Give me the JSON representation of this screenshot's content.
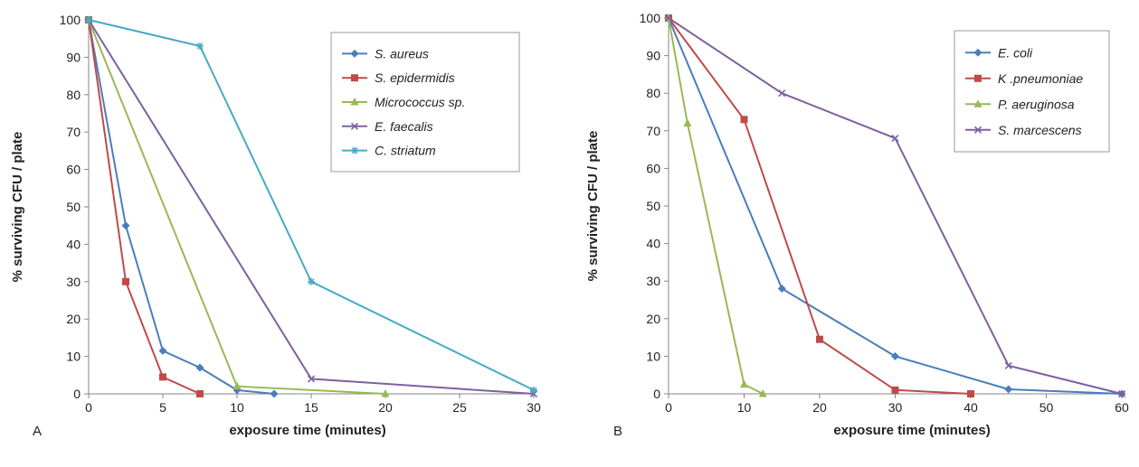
{
  "chart_data": [
    {
      "type": "line",
      "panel_label": "A",
      "xlabel": "exposure time (minutes)",
      "ylabel": "% surviving CFU / plate",
      "xlim": [
        0,
        30
      ],
      "ylim": [
        0,
        100
      ],
      "xticks": [
        0,
        5,
        10,
        15,
        20,
        25,
        30
      ],
      "yticks": [
        0,
        10,
        20,
        30,
        40,
        50,
        60,
        70,
        80,
        90,
        100
      ],
      "legend_position": "top-right",
      "series": [
        {
          "name": "S. aureus",
          "color": "#4a7ebb",
          "marker": "diamond",
          "x": [
            0,
            2.5,
            5,
            7.5,
            10,
            12.5
          ],
          "y": [
            100,
            45,
            11.5,
            7,
            1,
            0
          ]
        },
        {
          "name": "S. epidermidis",
          "color": "#be4b48",
          "marker": "square",
          "x": [
            0,
            2.5,
            5,
            7.5
          ],
          "y": [
            100,
            30,
            4.5,
            0
          ]
        },
        {
          "name": "Micrococcus sp.",
          "color": "#98b954",
          "marker": "triangle",
          "x": [
            0,
            10,
            20
          ],
          "y": [
            100,
            2,
            0
          ]
        },
        {
          "name": "E. faecalis",
          "color": "#7d60a0",
          "marker": "x",
          "x": [
            0,
            15,
            30
          ],
          "y": [
            100,
            4,
            0
          ]
        },
        {
          "name": "C. striatum",
          "color": "#46aac5",
          "marker": "star",
          "x": [
            0,
            7.5,
            15,
            30
          ],
          "y": [
            100,
            93,
            30,
            1
          ]
        }
      ]
    },
    {
      "type": "line",
      "panel_label": "B",
      "xlabel": "exposure time (minutes)",
      "ylabel": "% surviving CFU / plate",
      "xlim": [
        0,
        60
      ],
      "ylim": [
        0,
        100
      ],
      "xticks": [
        0,
        10,
        20,
        30,
        40,
        50,
        60
      ],
      "yticks": [
        0,
        10,
        20,
        30,
        40,
        50,
        60,
        70,
        80,
        90,
        100
      ],
      "legend_position": "top-right",
      "series": [
        {
          "name": "E. coli",
          "color": "#4a7ebb",
          "marker": "diamond",
          "x": [
            0,
            15,
            30,
            45,
            60
          ],
          "y": [
            100,
            28,
            10,
            1.2,
            0
          ]
        },
        {
          "name": "K .pneumoniae",
          "color": "#be4b48",
          "marker": "square",
          "x": [
            0,
            10,
            20,
            30,
            40
          ],
          "y": [
            100,
            73,
            14.5,
            1,
            0
          ]
        },
        {
          "name": "P. aeruginosa",
          "color": "#98b954",
          "marker": "triangle",
          "x": [
            0,
            2.5,
            10,
            12.5
          ],
          "y": [
            100,
            72,
            2.5,
            0
          ]
        },
        {
          "name": "S. marcescens",
          "color": "#7d60a0",
          "marker": "x",
          "x": [
            0,
            15,
            30,
            45,
            60
          ],
          "y": [
            100,
            80,
            68,
            7.5,
            0
          ]
        }
      ]
    }
  ]
}
